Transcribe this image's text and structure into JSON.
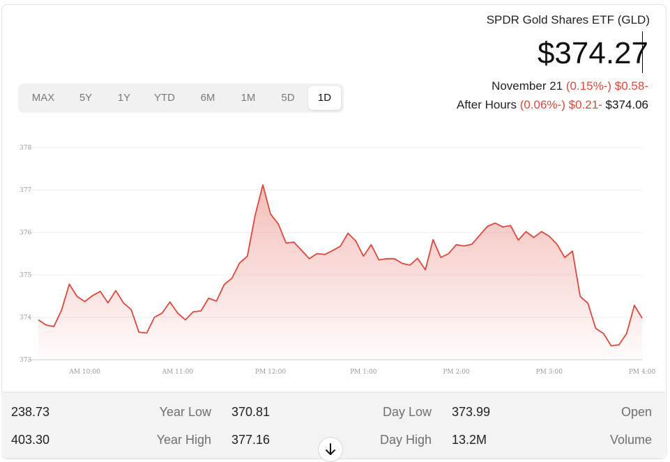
{
  "header": {
    "title": "SPDR Gold Shares ETF (GLD)",
    "price": "$374.27",
    "date": "November 21",
    "change_pct": "(0.15%-)",
    "change_abs": "$0.58-",
    "after_hours_label": "After Hours",
    "after_hours_pct": "(0.06%-)",
    "after_hours_abs": "$0.21-",
    "after_hours_price": "$374.06"
  },
  "range_tabs": [
    "MAX",
    "5Y",
    "1Y",
    "YTD",
    "6M",
    "1M",
    "5D",
    "1D"
  ],
  "active_tab": "1D",
  "chart_data": {
    "type": "area",
    "title": "",
    "xlabel": "",
    "ylabel": "",
    "ylim": [
      373,
      378
    ],
    "y_ticks": [
      373,
      374,
      375,
      376,
      377,
      378
    ],
    "x_ticks": [
      {
        "label": "AM 10:00",
        "t": 600
      },
      {
        "label": "AM 11:00",
        "t": 660
      },
      {
        "label": "PM 12:00",
        "t": 720
      },
      {
        "label": "PM 1:00",
        "t": 780
      },
      {
        "label": "PM 2:00",
        "t": 840
      },
      {
        "label": "PM 3:00",
        "t": 900
      },
      {
        "label": "PM 4:00",
        "t": 960
      }
    ],
    "grid": "horizontal",
    "color": "#e0463a",
    "series": [
      {
        "t": [
          570,
          575,
          580,
          585,
          590,
          595,
          600,
          605,
          610,
          615,
          620,
          625,
          630,
          635,
          640,
          645,
          650,
          655,
          660,
          665,
          670,
          675,
          680,
          685,
          690,
          695,
          700,
          705,
          710,
          715,
          720,
          725,
          730,
          735,
          740,
          745,
          750,
          755,
          760,
          765,
          770,
          775,
          780,
          785,
          790,
          795,
          800,
          805,
          810,
          815,
          820,
          825,
          830,
          835,
          840,
          845,
          850,
          855,
          860,
          865,
          870,
          875,
          880,
          885,
          890,
          895,
          900,
          905,
          910,
          915,
          920,
          925,
          930,
          935,
          940,
          945,
          950,
          955,
          960
        ],
        "values": [
          373.94,
          373.82,
          373.78,
          374.17,
          374.78,
          374.49,
          374.37,
          374.51,
          374.61,
          374.34,
          374.63,
          374.34,
          374.18,
          373.65,
          373.63,
          374.0,
          374.1,
          374.36,
          374.1,
          373.94,
          374.13,
          374.15,
          374.45,
          374.38,
          374.77,
          374.92,
          375.28,
          375.44,
          376.4,
          377.12,
          376.43,
          376.2,
          375.75,
          375.77,
          375.58,
          375.38,
          375.5,
          375.48,
          375.57,
          375.67,
          375.98,
          375.8,
          375.44,
          375.71,
          375.35,
          375.38,
          375.38,
          375.27,
          375.23,
          375.39,
          375.12,
          375.83,
          375.41,
          375.5,
          375.71,
          375.68,
          375.72,
          375.93,
          376.14,
          376.22,
          376.13,
          376.16,
          375.82,
          376.02,
          375.88,
          376.02,
          375.91,
          375.72,
          375.41,
          375.56,
          374.49,
          374.33,
          373.74,
          373.62,
          373.33,
          373.35,
          373.62,
          374.28,
          373.98
        ]
      }
    ]
  },
  "stats": {
    "row1": {
      "v1": "238.73",
      "l1": "Year Low",
      "v2": "370.81",
      "l2": "Day Low",
      "v3": "373.99",
      "l3": "Open"
    },
    "row2": {
      "v1": "403.30",
      "l1": "Year High",
      "v2": "377.16",
      "l2": "Day High",
      "v3": "13.2M",
      "l3": "Volume"
    }
  },
  "icons": {
    "scroll": "arrow-down-icon"
  }
}
